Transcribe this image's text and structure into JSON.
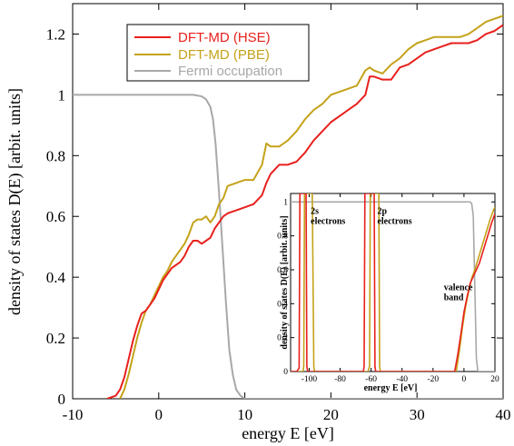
{
  "colors": {
    "hse": "#e8201c",
    "pbe": "#c4a21a",
    "fermi": "#a8a8a8"
  },
  "chart_data": [
    {
      "type": "line",
      "xlabel": "energy E [eV]",
      "ylabel": "density of states D(E) [arbit. units]",
      "xlim": [
        -10,
        40
      ],
      "ylim": [
        0,
        1.3
      ],
      "xticks": [
        -10,
        0,
        10,
        20,
        30,
        40
      ],
      "xtick_labels": [
        "-10",
        "0",
        "10",
        "20",
        "30",
        "40"
      ],
      "yticks": [
        0,
        0.2,
        0.4,
        0.6,
        0.8,
        1,
        1.2
      ],
      "ytick_labels": [
        "0",
        "0.2",
        "0.4",
        "0.6",
        "0.8",
        "1",
        "1.2"
      ],
      "legend": "top-left",
      "grid": false,
      "series": [
        {
          "name": "DFT-MD (HSE)",
          "color": "#e8201c",
          "x": [
            -6,
            -5,
            -4.5,
            -4,
            -3.5,
            -3,
            -2.5,
            -2,
            -1.5,
            -1,
            -0.5,
            0,
            0.5,
            1,
            1.5,
            2,
            2.5,
            3,
            3.5,
            4,
            4.5,
            5,
            5.5,
            6,
            6.5,
            7,
            7.5,
            8,
            9,
            10,
            11,
            12,
            12.5,
            13,
            14,
            15,
            16,
            17,
            18,
            19,
            20,
            21,
            22,
            23,
            24,
            24.5,
            25,
            26,
            27,
            28,
            29,
            30,
            31,
            32,
            33,
            34,
            35,
            36,
            37,
            38,
            39,
            40
          ],
          "y": [
            0,
            0.01,
            0.03,
            0.07,
            0.13,
            0.19,
            0.24,
            0.28,
            0.29,
            0.31,
            0.33,
            0.36,
            0.39,
            0.41,
            0.43,
            0.44,
            0.45,
            0.47,
            0.5,
            0.52,
            0.52,
            0.51,
            0.52,
            0.53,
            0.56,
            0.58,
            0.6,
            0.61,
            0.62,
            0.63,
            0.64,
            0.67,
            0.71,
            0.74,
            0.77,
            0.77,
            0.78,
            0.81,
            0.85,
            0.88,
            0.91,
            0.93,
            0.95,
            0.97,
            1.0,
            1.06,
            1.06,
            1.05,
            1.05,
            1.09,
            1.1,
            1.12,
            1.14,
            1.15,
            1.16,
            1.17,
            1.17,
            1.17,
            1.18,
            1.2,
            1.21,
            1.23
          ]
        },
        {
          "name": "DFT-MD (PBE)",
          "color": "#c4a21a",
          "x": [
            -4.5,
            -4,
            -3.5,
            -3,
            -2.5,
            -2,
            -1.5,
            -1,
            -0.5,
            0,
            0.5,
            1,
            1.5,
            2,
            2.5,
            3,
            3.5,
            4,
            4.5,
            5,
            5.5,
            6,
            6.5,
            7,
            7.5,
            8,
            9,
            10,
            11,
            12,
            12.5,
            13,
            14,
            15,
            16,
            17,
            18,
            19,
            20,
            21,
            22,
            23,
            24,
            24.5,
            25,
            26,
            27,
            28,
            29,
            30,
            31,
            32,
            33,
            34,
            35,
            36,
            37,
            38,
            39,
            40
          ],
          "y": [
            0,
            0.03,
            0.08,
            0.14,
            0.2,
            0.25,
            0.29,
            0.31,
            0.34,
            0.37,
            0.4,
            0.42,
            0.45,
            0.47,
            0.49,
            0.51,
            0.54,
            0.58,
            0.59,
            0.59,
            0.6,
            0.58,
            0.6,
            0.64,
            0.66,
            0.7,
            0.71,
            0.72,
            0.72,
            0.77,
            0.84,
            0.83,
            0.83,
            0.85,
            0.88,
            0.92,
            0.95,
            0.97,
            1.0,
            1.01,
            1.02,
            1.03,
            1.08,
            1.09,
            1.08,
            1.07,
            1.1,
            1.12,
            1.15,
            1.17,
            1.18,
            1.19,
            1.19,
            1.19,
            1.19,
            1.2,
            1.22,
            1.24,
            1.25,
            1.26
          ]
        },
        {
          "name": "Fermi occupation",
          "color": "#a8a8a8",
          "x": [
            -10,
            0,
            4,
            5,
            5.5,
            6,
            6.3,
            6.6,
            7,
            7.4,
            7.8,
            8.2,
            8.6,
            9,
            9.5,
            10,
            40
          ],
          "y": [
            1,
            1,
            1,
            0.995,
            0.985,
            0.96,
            0.92,
            0.84,
            0.68,
            0.5,
            0.32,
            0.16,
            0.08,
            0.03,
            0.01,
            0,
            0
          ]
        }
      ]
    },
    {
      "type": "line",
      "xlabel": "energy E [eV]",
      "ylabel": "density of states D(E) [arbit. units]",
      "xlim": [
        -112,
        20
      ],
      "ylim": [
        0,
        1.05
      ],
      "xticks": [
        -100,
        -80,
        -60,
        -40,
        -20,
        0,
        20
      ],
      "xtick_labels": [
        "-100",
        "-80",
        "-60",
        "-40",
        "-20",
        "0",
        "20"
      ],
      "yticks": [
        0,
        0.2,
        0.4,
        0.6,
        0.8,
        1
      ],
      "ytick_labels": [
        "0",
        "0.2",
        "0.4",
        "0.6",
        "0.8",
        "1"
      ],
      "annotations": [
        {
          "text": "2s",
          "x": -99,
          "y": 0.93
        },
        {
          "text": "electrons",
          "x": -99,
          "y": 0.87
        },
        {
          "text": "2p",
          "x": -56,
          "y": 0.93
        },
        {
          "text": "electrons",
          "x": -56,
          "y": 0.87
        },
        {
          "text": "valence",
          "x": -13,
          "y": 0.48
        },
        {
          "text": "band",
          "x": -13,
          "y": 0.42
        }
      ],
      "series": [
        {
          "name": "DFT-MD (HSE)",
          "color": "#e8201c",
          "x": [
            -112,
            -108,
            -106.5,
            -106,
            -105.5,
            -102,
            -101.5,
            -101,
            -99.5,
            -98,
            -65,
            -64.5,
            -64,
            -63.5,
            -63,
            -59,
            -58,
            -57.5,
            -57,
            -56.5,
            -6,
            -4,
            -2,
            0,
            2,
            4,
            6,
            8,
            10,
            12,
            14,
            16,
            18,
            20
          ],
          "y": [
            0,
            0,
            0.02,
            1.05,
            1.05,
            1.05,
            0.03,
            0,
            0,
            0,
            0,
            0.03,
            1.05,
            1.05,
            1.05,
            1.05,
            1.05,
            0.03,
            0,
            0,
            0,
            0.1,
            0.22,
            0.35,
            0.44,
            0.52,
            0.56,
            0.6,
            0.64,
            0.7,
            0.76,
            0.82,
            0.88,
            0.93
          ]
        },
        {
          "name": "DFT-MD (PBE)",
          "color": "#c4a21a",
          "x": [
            -112,
            -106,
            -104,
            -103.5,
            -103,
            -98,
            -97,
            -96.5,
            -95,
            -62,
            -61,
            -60.5,
            -60,
            -56,
            -55,
            -54.5,
            -54,
            -5,
            -3,
            -1,
            1,
            3,
            5,
            7,
            9,
            11,
            13,
            15,
            17,
            19,
            20
          ],
          "y": [
            0,
            0,
            0,
            0.03,
            1.05,
            1.05,
            0.03,
            0,
            0,
            0,
            0.03,
            1.05,
            1.05,
            1.05,
            1.05,
            0.03,
            0,
            0,
            0.12,
            0.26,
            0.38,
            0.47,
            0.55,
            0.6,
            0.66,
            0.72,
            0.78,
            0.84,
            0.9,
            0.95,
            0.97
          ]
        },
        {
          "name": "Fermi occupation",
          "color": "#a8a8a8",
          "x": [
            -112,
            4,
            5,
            6,
            7,
            8,
            9,
            20
          ],
          "y": [
            1,
            1,
            0.99,
            0.92,
            0.5,
            0.08,
            0,
            0
          ]
        }
      ]
    }
  ]
}
